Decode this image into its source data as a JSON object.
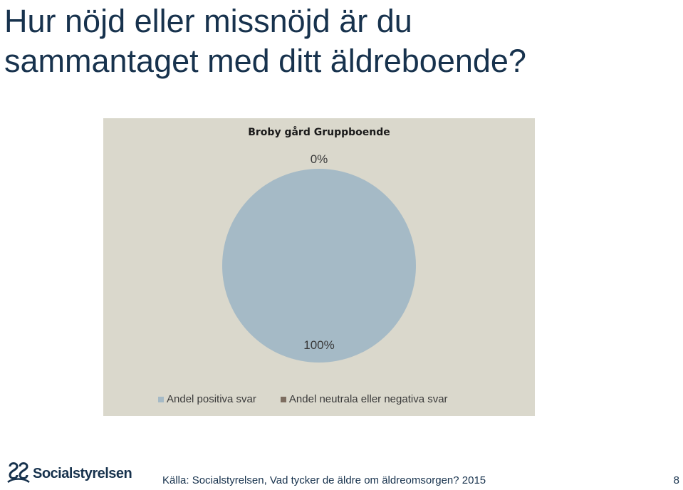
{
  "slide": {
    "title_lines": [
      "Hur nöjd eller missnöjd är du",
      "sammantaget med ditt äldreboende?"
    ],
    "source": "Källa: Socialstyrelsen, Vad tycker de äldre om äldreomsorgen? 2015",
    "page_number": "8",
    "logo_text": "Socialstyrelsen"
  },
  "chart_data": {
    "type": "pie",
    "title": "Broby gård Gruppboende",
    "series": [
      {
        "name": "Andel positiva svar",
        "value": 100,
        "label": "100%",
        "color": "#a5bac6"
      },
      {
        "name": "Andel neutrala eller negativa svar",
        "value": 0,
        "label": "0%",
        "color": "#7d6d60"
      }
    ],
    "legend_position": "bottom"
  },
  "colors": {
    "title": "#17324d",
    "chart_background": "#dad8cc"
  }
}
